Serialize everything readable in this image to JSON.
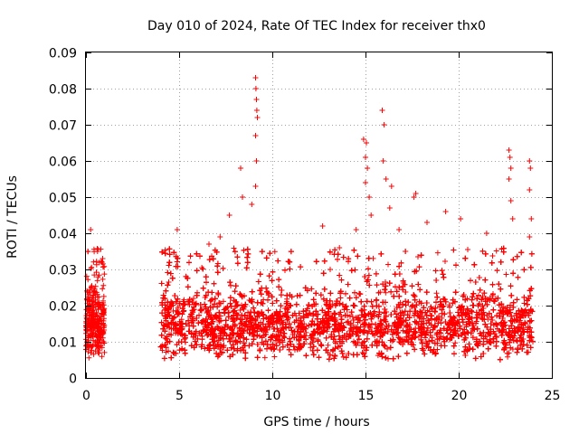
{
  "chart_data": {
    "type": "scatter",
    "title": "Day 010 of 2024, Rate Of TEC Index for receiver thx0",
    "xlabel": "GPS time / hours",
    "ylabel": "ROTI / TECUs",
    "xlim": [
      0,
      25
    ],
    "ylim": [
      0,
      0.09
    ],
    "x_ticks": [
      0,
      5,
      10,
      15,
      20,
      25
    ],
    "y_ticks": [
      0,
      0.01,
      0.02,
      0.03,
      0.04,
      0.05,
      0.06,
      0.07,
      0.08,
      0.09
    ],
    "grid": true,
    "marker": "+",
    "color": "#ff0000",
    "coverage_hours": [
      [
        0.0,
        1.0
      ],
      [
        4.0,
        24.0
      ]
    ],
    "typical_range": [
      0.005,
      0.03
    ],
    "series": [
      {
        "name": "ROTI",
        "note": "dense point cloud; representative outliers listed",
        "outliers": [
          {
            "x": 0.1,
            "y": 0.035
          },
          {
            "x": 0.25,
            "y": 0.041
          },
          {
            "x": 0.9,
            "y": 0.033
          },
          {
            "x": 4.9,
            "y": 0.041
          },
          {
            "x": 6.6,
            "y": 0.037
          },
          {
            "x": 7.2,
            "y": 0.039
          },
          {
            "x": 7.7,
            "y": 0.045
          },
          {
            "x": 8.3,
            "y": 0.058
          },
          {
            "x": 8.4,
            "y": 0.05
          },
          {
            "x": 8.9,
            "y": 0.048
          },
          {
            "x": 9.1,
            "y": 0.083
          },
          {
            "x": 9.12,
            "y": 0.08
          },
          {
            "x": 9.15,
            "y": 0.077
          },
          {
            "x": 9.17,
            "y": 0.074
          },
          {
            "x": 9.2,
            "y": 0.072
          },
          {
            "x": 9.1,
            "y": 0.067
          },
          {
            "x": 9.15,
            "y": 0.06
          },
          {
            "x": 9.1,
            "y": 0.053
          },
          {
            "x": 12.7,
            "y": 0.042
          },
          {
            "x": 13.6,
            "y": 0.036
          },
          {
            "x": 14.5,
            "y": 0.041
          },
          {
            "x": 14.9,
            "y": 0.066
          },
          {
            "x": 15.05,
            "y": 0.065
          },
          {
            "x": 15.0,
            "y": 0.061
          },
          {
            "x": 15.1,
            "y": 0.058
          },
          {
            "x": 15.0,
            "y": 0.054
          },
          {
            "x": 15.2,
            "y": 0.05
          },
          {
            "x": 15.3,
            "y": 0.045
          },
          {
            "x": 15.9,
            "y": 0.074
          },
          {
            "x": 16.0,
            "y": 0.07
          },
          {
            "x": 15.95,
            "y": 0.06
          },
          {
            "x": 16.1,
            "y": 0.055
          },
          {
            "x": 16.4,
            "y": 0.053
          },
          {
            "x": 16.3,
            "y": 0.047
          },
          {
            "x": 16.8,
            "y": 0.041
          },
          {
            "x": 17.6,
            "y": 0.05
          },
          {
            "x": 17.7,
            "y": 0.051
          },
          {
            "x": 18.3,
            "y": 0.043
          },
          {
            "x": 19.3,
            "y": 0.046
          },
          {
            "x": 20.1,
            "y": 0.044
          },
          {
            "x": 21.5,
            "y": 0.04
          },
          {
            "x": 22.7,
            "y": 0.063
          },
          {
            "x": 22.75,
            "y": 0.061
          },
          {
            "x": 22.8,
            "y": 0.058
          },
          {
            "x": 22.7,
            "y": 0.055
          },
          {
            "x": 22.8,
            "y": 0.049
          },
          {
            "x": 22.9,
            "y": 0.044
          },
          {
            "x": 23.8,
            "y": 0.06
          },
          {
            "x": 23.85,
            "y": 0.058
          },
          {
            "x": 23.8,
            "y": 0.052
          },
          {
            "x": 23.9,
            "y": 0.044
          },
          {
            "x": 23.8,
            "y": 0.039
          }
        ]
      }
    ]
  }
}
